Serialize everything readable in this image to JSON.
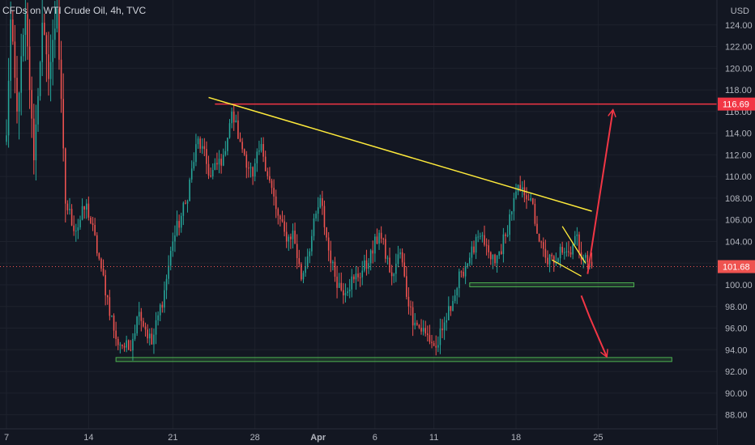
{
  "chart_data": {
    "type": "candlestick",
    "title": "CFDs on WTI Crude Oil, 4h, TVC",
    "currency": "USD",
    "y_ticks": [
      "124.00",
      "122.00",
      "120.00",
      "118.00",
      "116.00",
      "114.00",
      "112.00",
      "110.00",
      "108.00",
      "106.00",
      "104.00",
      "102.00",
      "100.00",
      "98.00",
      "96.00",
      "94.00",
      "92.00",
      "90.00",
      "88.00"
    ],
    "y_tick_values": [
      124,
      122,
      120,
      118,
      116,
      114,
      112,
      110,
      108,
      106,
      104,
      102,
      100,
      98,
      96,
      94,
      92,
      90,
      88
    ],
    "ylim": [
      86.7,
      126.3
    ],
    "x_ticks": [
      "7",
      "14",
      "21",
      "28",
      "Apr",
      "6",
      "11",
      "18",
      "25"
    ],
    "x_tick_index": [
      0,
      39,
      79,
      118,
      148,
      175,
      203,
      242,
      281
    ],
    "x_tick_bold": [
      "Apr"
    ],
    "grid": true,
    "colors": {
      "background": "#131722",
      "grid": "#1e222d",
      "up": "#26a69a",
      "down": "#ef5350",
      "text": "#b2b5be",
      "resistance": "#f23645",
      "trendline": "#ffeb3b",
      "support": "#4caf50",
      "arrow": "#f23645",
      "price_line": "#ef5350"
    },
    "anchors": [
      [
        0,
        113.8
      ],
      [
        2,
        124.5
      ],
      [
        5,
        116
      ],
      [
        9,
        125
      ],
      [
        13,
        111.5
      ],
      [
        17,
        124.2
      ],
      [
        20,
        119
      ],
      [
        24,
        125.5
      ],
      [
        28,
        107.5
      ],
      [
        33,
        105
      ],
      [
        38,
        107.5
      ],
      [
        45,
        101.5
      ],
      [
        52,
        95
      ],
      [
        58,
        94
      ],
      [
        63,
        97.5
      ],
      [
        69,
        94.5
      ],
      [
        75,
        99.5
      ],
      [
        79,
        104
      ],
      [
        85,
        107.5
      ],
      [
        91,
        113.5
      ],
      [
        97,
        110
      ],
      [
        103,
        112
      ],
      [
        107,
        116
      ],
      [
        111,
        113.2
      ],
      [
        117,
        110
      ],
      [
        121,
        113
      ],
      [
        128,
        107
      ],
      [
        133,
        104
      ],
      [
        136,
        105
      ],
      [
        140,
        100.5
      ],
      [
        145,
        104.5
      ],
      [
        149,
        108
      ],
      [
        154,
        102
      ],
      [
        159,
        99.5
      ],
      [
        165,
        100.5
      ],
      [
        172,
        102
      ],
      [
        177,
        104.8
      ],
      [
        183,
        100.8
      ],
      [
        187,
        103
      ],
      [
        191,
        98
      ],
      [
        194,
        96.5
      ],
      [
        199,
        95.5
      ],
      [
        204,
        94.2
      ],
      [
        207,
        95.8
      ],
      [
        212,
        98.5
      ],
      [
        216,
        101.2
      ],
      [
        220,
        102.5
      ],
      [
        225,
        104.5
      ],
      [
        229,
        103
      ],
      [
        232,
        102
      ],
      [
        237,
        104.5
      ],
      [
        241,
        108
      ],
      [
        245,
        109
      ],
      [
        249,
        108
      ],
      [
        253,
        104
      ],
      [
        256,
        102.5
      ],
      [
        260,
        102
      ],
      [
        263,
        103.5
      ],
      [
        267,
        103
      ],
      [
        270,
        104.5
      ],
      [
        274,
        102.5
      ],
      [
        278,
        101.7
      ]
    ],
    "current_price": 101.68,
    "current_price_label": "101.68",
    "resistance_level": 116.69,
    "resistance_label": "116.69",
    "support_levels": [
      {
        "from": 220,
        "to": 298,
        "value": 100.0
      },
      {
        "from": 52,
        "to": 316,
        "value": 93.1
      }
    ],
    "trendline": {
      "x1": 96,
      "y1": 117.3,
      "x2": 278,
      "y2": 106.8
    },
    "triangle": {
      "upper": [
        [
          264,
          105.4
        ],
        [
          275,
          102.0
        ]
      ],
      "lower": [
        [
          259,
          102.3
        ],
        [
          273,
          100.8
        ]
      ]
    },
    "arrows": [
      {
        "from": [
          276,
          101.0
        ],
        "to": [
          288,
          116.1
        ]
      },
      {
        "from": [
          273,
          99.0
        ],
        "to": [
          277,
          97.0
        ],
        "then": [
          285,
          93.4
        ]
      }
    ]
  }
}
